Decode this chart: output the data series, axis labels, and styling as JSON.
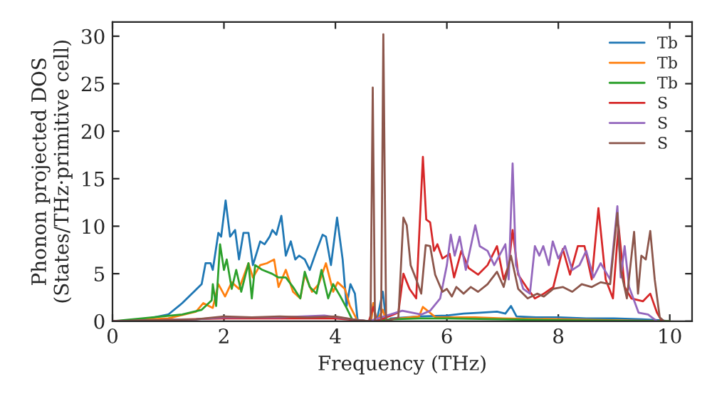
{
  "chart_data": {
    "type": "line",
    "xlabel": "Frequency (THz)",
    "ylabel": "Phonon projected DOS\n(States/THz·primitive cell)",
    "xlim": [
      0,
      10.4
    ],
    "xticks": [
      0,
      2,
      4,
      6,
      8,
      10
    ],
    "ylim": [
      0,
      31.5
    ],
    "yticks": [
      0,
      5,
      10,
      15,
      20,
      25,
      30
    ],
    "grid": false,
    "legend": "top right",
    "marker": "none",
    "line_style": "solid",
    "series": [
      {
        "name": "Tb",
        "color": "#1f77b4",
        "x": [
          0,
          0.5,
          1.0,
          1.25,
          1.46,
          1.6,
          1.67,
          1.76,
          1.8,
          1.9,
          1.95,
          2.03,
          2.11,
          2.2,
          2.27,
          2.35,
          2.44,
          2.52,
          2.65,
          2.73,
          2.82,
          2.87,
          2.94,
          3.03,
          3.11,
          3.2,
          3.28,
          3.35,
          3.45,
          3.54,
          3.66,
          3.77,
          3.83,
          3.92,
          4.03,
          4.13,
          4.2,
          4.27,
          4.35,
          4.4,
          4.64,
          4.68,
          4.74,
          4.85,
          4.91,
          5.0,
          5.5,
          6.0,
          6.3,
          6.6,
          6.9,
          7.05,
          7.15,
          7.25,
          7.6,
          8.0,
          8.5,
          9.0,
          9.5,
          9.8,
          10.0
        ],
        "values": [
          0,
          0.1,
          0.7,
          1.9,
          3.1,
          3.9,
          6.1,
          6.1,
          5.4,
          9.3,
          8.9,
          12.7,
          8.9,
          9.6,
          6.5,
          9.3,
          9.3,
          5.9,
          8.4,
          8.1,
          8.9,
          9.6,
          9.1,
          11.1,
          6.9,
          8.4,
          6.5,
          6.9,
          6.5,
          5.4,
          7.4,
          9.1,
          8.9,
          5.9,
          10.9,
          6.5,
          1.6,
          3.9,
          2.9,
          0,
          0,
          1.9,
          0,
          3.1,
          0,
          0.3,
          0.5,
          0.6,
          0.8,
          0.9,
          1.0,
          0.8,
          1.6,
          0.5,
          0.4,
          0.4,
          0.3,
          0.3,
          0.2,
          0.1,
          0
        ]
      },
      {
        "name": "Tb",
        "color": "#ff7f0e",
        "x": [
          0,
          1.0,
          1.5,
          1.63,
          1.8,
          1.9,
          2.02,
          2.14,
          2.27,
          2.44,
          2.52,
          2.65,
          2.77,
          2.9,
          2.98,
          3.11,
          3.24,
          3.37,
          3.45,
          3.58,
          3.7,
          3.83,
          3.96,
          4.04,
          4.17,
          4.26,
          4.4,
          4.64,
          4.68,
          4.74,
          4.85,
          4.91,
          5.0,
          5.5,
          5.57,
          5.8,
          6.5,
          7.0,
          8.0,
          10.0
        ],
        "values": [
          0,
          0.3,
          1.0,
          1.9,
          1.4,
          3.9,
          2.6,
          4.1,
          3.4,
          6.1,
          4.6,
          5.9,
          6.1,
          6.5,
          3.6,
          5.4,
          3.1,
          2.4,
          4.9,
          3.1,
          3.9,
          6.1,
          3.1,
          4.1,
          3.4,
          1.6,
          0,
          0,
          1.9,
          0,
          1.2,
          0,
          0.2,
          0.5,
          1.5,
          0.4,
          0.4,
          0.3,
          null,
          0
        ]
      },
      {
        "name": "Tb",
        "color": "#2ca02c",
        "x": [
          0,
          1.25,
          1.6,
          1.78,
          1.8,
          1.86,
          1.93,
          2.0,
          2.05,
          2.14,
          2.22,
          2.31,
          2.44,
          2.5,
          2.56,
          2.69,
          2.86,
          2.98,
          3.11,
          3.24,
          3.37,
          3.45,
          3.54,
          3.66,
          3.75,
          3.87,
          3.96,
          4.09,
          4.2,
          4.3,
          4.6,
          5.0,
          5.5,
          6.0,
          7.0,
          8.0,
          10.0
        ],
        "values": [
          0,
          0.7,
          1.2,
          2.2,
          3.9,
          1.6,
          8.1,
          5.4,
          6.5,
          3.4,
          5.4,
          3.1,
          6.1,
          2.4,
          5.9,
          5.4,
          5.0,
          4.6,
          4.6,
          3.6,
          2.4,
          5.2,
          3.6,
          2.9,
          5.4,
          2.4,
          3.9,
          2.6,
          1.4,
          0.2,
          0,
          0.2,
          0.3,
          0.3,
          0.2,
          0.1,
          0
        ]
      },
      {
        "name": "S",
        "color": "#d62728",
        "x": [
          0,
          2.0,
          4.0,
          4.6,
          4.68,
          4.74,
          5.13,
          5.22,
          5.33,
          5.45,
          5.57,
          5.63,
          5.7,
          5.77,
          5.83,
          5.92,
          6.05,
          6.13,
          6.26,
          6.39,
          6.56,
          6.73,
          6.9,
          7.02,
          7.11,
          7.18,
          7.28,
          7.45,
          7.58,
          7.74,
          7.91,
          8.08,
          8.21,
          8.35,
          8.47,
          8.6,
          8.72,
          8.85,
          8.98,
          9.08,
          9.19,
          9.31,
          9.52,
          9.65,
          9.77,
          9.86
        ],
        "values": [
          0,
          0.3,
          0.3,
          0,
          1.5,
          0,
          0.9,
          5.0,
          3.4,
          2.4,
          17.3,
          10.7,
          10.4,
          7.4,
          8.1,
          6.6,
          7.1,
          4.6,
          7.4,
          5.6,
          4.9,
          5.9,
          7.9,
          4.4,
          5.9,
          9.6,
          4.9,
          3.4,
          2.4,
          2.9,
          3.6,
          7.6,
          4.9,
          7.9,
          7.9,
          4.4,
          11.9,
          4.4,
          2.4,
          10.1,
          3.6,
          2.4,
          2.1,
          2.9,
          0.9,
          0
        ]
      },
      {
        "name": "S",
        "color": "#9467bd",
        "x": [
          0,
          1.5,
          2.0,
          3.0,
          3.8,
          4.3,
          4.6,
          5.2,
          5.54,
          5.7,
          5.88,
          6.0,
          6.07,
          6.14,
          6.23,
          6.34,
          6.51,
          6.59,
          6.73,
          6.85,
          7.05,
          7.11,
          7.18,
          7.24,
          7.37,
          7.49,
          7.58,
          7.66,
          7.73,
          7.83,
          7.9,
          8.0,
          8.12,
          8.25,
          8.38,
          8.5,
          8.63,
          8.76,
          8.93,
          9.06,
          9.12,
          9.19,
          9.27,
          9.44,
          9.61,
          9.77
        ],
        "values": [
          0,
          0.2,
          0.4,
          0.4,
          0.6,
          0.2,
          0,
          1.1,
          0.7,
          1.1,
          2.4,
          5.9,
          9.1,
          6.9,
          8.9,
          5.4,
          10.1,
          7.9,
          7.4,
          5.9,
          8.1,
          4.4,
          16.6,
          5.9,
          3.4,
          2.9,
          7.9,
          6.9,
          7.9,
          5.9,
          8.4,
          6.6,
          7.9,
          5.4,
          5.9,
          7.4,
          4.6,
          6.1,
          4.4,
          12.1,
          4.6,
          7.9,
          3.6,
          0.9,
          0.7,
          0
        ]
      },
      {
        "name": "S",
        "color": "#8c564b",
        "x": [
          0,
          1.5,
          2.0,
          2.5,
          3.0,
          3.5,
          4.0,
          4.4,
          4.63,
          4.67,
          4.71,
          4.82,
          4.86,
          4.91,
          5.13,
          5.22,
          5.28,
          5.35,
          5.45,
          5.54,
          5.62,
          5.7,
          5.79,
          5.92,
          6.0,
          6.09,
          6.17,
          6.3,
          6.43,
          6.56,
          6.73,
          6.9,
          7.02,
          7.15,
          7.28,
          7.45,
          7.62,
          7.74,
          7.91,
          8.08,
          8.25,
          8.42,
          8.6,
          8.76,
          8.93,
          9.06,
          9.12,
          9.23,
          9.36,
          9.43,
          9.49,
          9.57,
          9.65,
          9.73,
          9.82,
          9.9
        ],
        "values": [
          0,
          0.2,
          0.5,
          0.4,
          0.5,
          0.4,
          0.5,
          0.1,
          0,
          24.6,
          0,
          0,
          30.2,
          0,
          0.4,
          10.9,
          10.1,
          5.9,
          4.4,
          2.9,
          8.0,
          7.9,
          4.9,
          3.1,
          3.4,
          2.6,
          3.6,
          2.9,
          3.6,
          3.1,
          3.9,
          5.2,
          3.6,
          6.9,
          3.4,
          2.4,
          2.9,
          2.6,
          3.4,
          3.6,
          3.1,
          3.9,
          3.6,
          4.1,
          3.9,
          11.4,
          5.4,
          2.4,
          9.4,
          2.9,
          6.9,
          6.5,
          9.5,
          4.4,
          0.4,
          0
        ]
      }
    ]
  }
}
